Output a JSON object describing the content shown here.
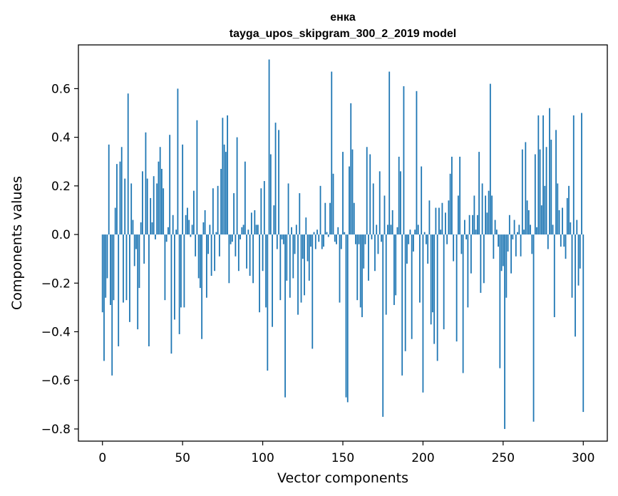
{
  "chart_data": {
    "type": "bar",
    "title": "енка",
    "subtitle": "tayga_upos_skipgram_300_2_2019 model",
    "xlabel": "Vector components",
    "ylabel": "Components values",
    "xlim": [
      -15,
      315
    ],
    "ylim": [
      -0.85,
      0.78
    ],
    "xticks": [
      0,
      50,
      100,
      150,
      200,
      250,
      300
    ],
    "xtick_labels": [
      "0",
      "50",
      "100",
      "150",
      "200",
      "250",
      "300"
    ],
    "yticks": [
      -0.8,
      -0.6,
      -0.4,
      -0.2,
      0.0,
      0.2,
      0.4,
      0.6
    ],
    "ytick_labels": [
      "−0.8",
      "−0.6",
      "−0.4",
      "−0.2",
      "0.0",
      "0.2",
      "0.4",
      "0.6"
    ],
    "bar_color": "#1f77b4",
    "grid": false,
    "values": [
      -0.32,
      -0.52,
      -0.26,
      -0.18,
      0.37,
      -0.29,
      -0.58,
      -0.27,
      0.11,
      0.29,
      -0.46,
      0.3,
      0.36,
      -0.28,
      0.23,
      -0.27,
      0.58,
      -0.36,
      0.21,
      0.06,
      -0.13,
      -0.06,
      -0.39,
      -0.22,
      0.05,
      0.26,
      -0.12,
      0.42,
      0.23,
      -0.46,
      0.15,
      0.05,
      0.24,
      -0.02,
      0.21,
      0.3,
      0.36,
      0.27,
      0.19,
      -0.27,
      -0.03,
      0.03,
      0.41,
      -0.49,
      0.08,
      -0.35,
      0.02,
      0.6,
      -0.41,
      -0.3,
      0.37,
      -0.3,
      0.08,
      0.11,
      0.06,
      -0.01,
      0.04,
      0.18,
      -0.09,
      0.47,
      -0.18,
      -0.22,
      -0.43,
      0.05,
      0.1,
      -0.26,
      -0.08,
      0.04,
      -0.17,
      0.19,
      -0.15,
      0.01,
      0.2,
      -0.09,
      0.27,
      0.48,
      0.37,
      0.34,
      0.49,
      -0.2,
      -0.04,
      -0.03,
      0.17,
      -0.09,
      0.4,
      -0.15,
      -0.02,
      0.03,
      0.04,
      0.3,
      -0.14,
      0.02,
      -0.17,
      0.09,
      -0.2,
      0.1,
      0.04,
      0.04,
      -0.32,
      0.19,
      -0.15,
      0.22,
      -0.3,
      -0.56,
      0.72,
      0.33,
      -0.38,
      0.12,
      0.46,
      -0.06,
      0.43,
      -0.27,
      -0.02,
      -0.04,
      -0.67,
      -0.19,
      0.21,
      -0.26,
      0.03,
      -0.18,
      -0.08,
      0.04,
      -0.33,
      0.17,
      -0.28,
      -0.1,
      -0.25,
      0.07,
      -0.11,
      -0.19,
      -0.05,
      -0.47,
      0.01,
      -0.06,
      0.02,
      -0.03,
      0.2,
      -0.06,
      -0.05,
      0.13,
      0.01,
      -0.01,
      0.13,
      0.67,
      0.25,
      -0.03,
      -0.04,
      0.03,
      -0.28,
      -0.06,
      0.34,
      0.01,
      -0.67,
      -0.69,
      0.28,
      0.54,
      0.35,
      0.13,
      -0.04,
      -0.27,
      -0.04,
      -0.3,
      -0.34,
      -0.14,
      -0.04,
      0.36,
      -0.19,
      0.33,
      -0.02,
      0.21,
      -0.15,
      0.04,
      -0.08,
      0.26,
      -0.03,
      -0.75,
      0.16,
      -0.33,
      0.04,
      0.67,
      0.04,
      0.1,
      -0.29,
      -0.25,
      0.03,
      0.32,
      0.26,
      -0.58,
      0.61,
      -0.48,
      -0.12,
      -0.04,
      0.02,
      -0.43,
      -0.07,
      0.02,
      0.59,
      0.04,
      -0.28,
      0.28,
      -0.65,
      0.01,
      -0.04,
      -0.12,
      0.14,
      -0.37,
      -0.32,
      -0.45,
      0.11,
      -0.52,
      0.11,
      0.02,
      0.13,
      -0.39,
      0.09,
      -0.04,
      0.14,
      0.25,
      0.32,
      -0.11,
      0.0,
      -0.44,
      0.16,
      0.32,
      -0.08,
      -0.57,
      0.06,
      -0.02,
      -0.3,
      0.08,
      -0.16,
      0.08,
      0.16,
      0.02,
      0.08,
      0.34,
      -0.24,
      0.21,
      -0.2,
      0.16,
      0.09,
      0.18,
      0.62,
      0.16,
      -0.1,
      0.06,
      0.02,
      -0.05,
      -0.55,
      -0.15,
      -0.13,
      -0.8,
      -0.26,
      -0.07,
      0.08,
      -0.16,
      -0.02,
      0.06,
      -0.09,
      0.01,
      0.04,
      -0.09,
      0.35,
      0.02,
      0.38,
      0.14,
      0.1,
      0.04,
      -0.08,
      -0.77,
      0.33,
      0.03,
      0.49,
      0.35,
      0.12,
      0.49,
      0.2,
      0.36,
      -0.06,
      0.52,
      0.39,
      0.04,
      -0.34,
      0.43,
      0.21,
      0.1,
      -0.05,
      0.11,
      -0.05,
      -0.1,
      0.15,
      0.2,
      0.05,
      -0.26,
      0.49,
      -0.42,
      0.06,
      -0.21,
      -0.14,
      0.5,
      -0.73
    ]
  }
}
